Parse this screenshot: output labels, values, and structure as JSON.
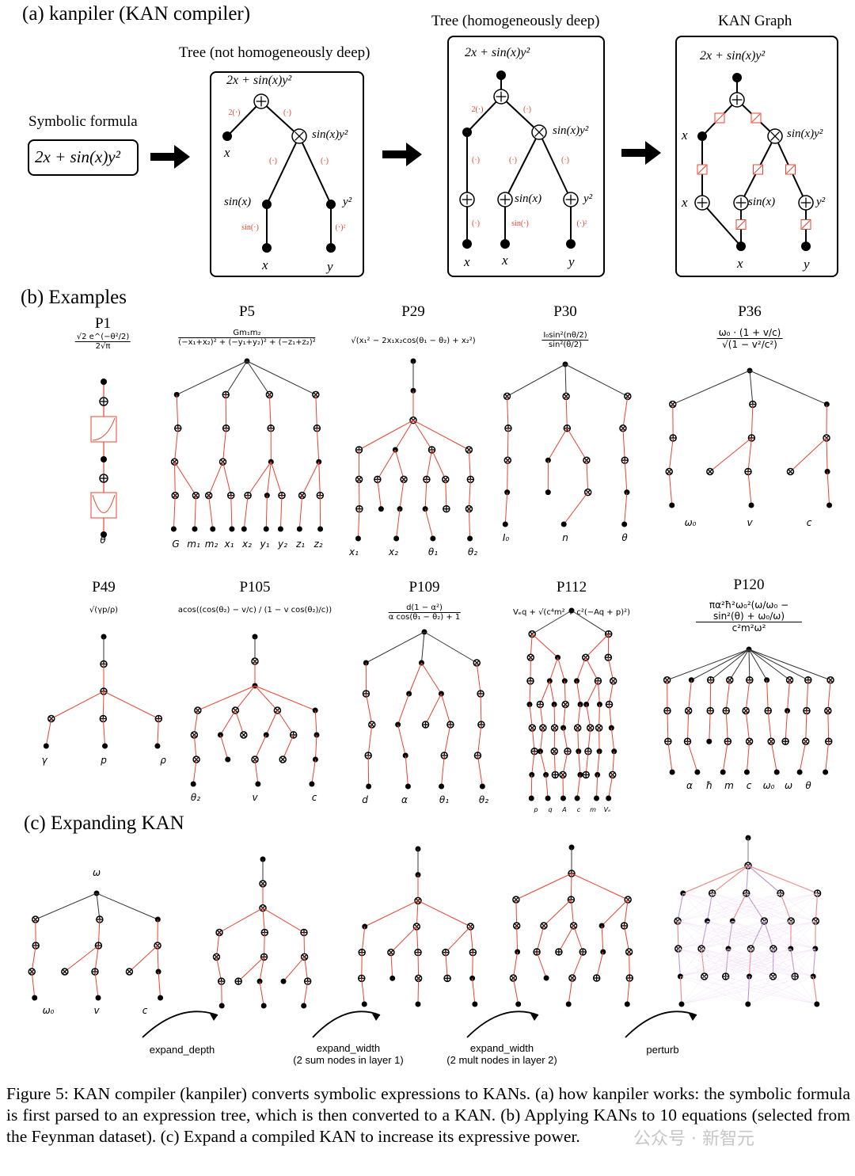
{
  "section_a": {
    "title": "(a) kanpiler (KAN compiler)",
    "symbolic_label": "Symbolic formula",
    "formula": "2x + sin(x)y²",
    "panels": [
      {
        "title": "Tree (not homogeneously deep)",
        "formula": "2x + sin(x)y²"
      },
      {
        "title": "Tree (homogeneously deep)",
        "formula": "2x + sin(x)y²"
      },
      {
        "title": "KAN Graph",
        "formula": "2x + sin(x)y²"
      }
    ],
    "node_labels": {
      "x": "x",
      "y": "y",
      "sinx": "sin(x)",
      "y2": "y²",
      "prod": "sin(x)y²"
    },
    "edge_labels": {
      "two": "2(·)",
      "id": "(·)",
      "sin": "sin(·)",
      "sq": "(·)²"
    }
  },
  "section_b": {
    "title": "(b) Examples",
    "examples": [
      {
        "name": "P1",
        "num": "√2 e^(−θ²/2)",
        "den": "2√π",
        "vars": [
          "θ"
        ]
      },
      {
        "name": "P5",
        "num": "Gm₁m₂",
        "den": "(−x₁+x₂)² + (−y₁+y₂)² + (−z₁+z₂)²",
        "vars": [
          "G",
          "m₁",
          "m₂",
          "x₁",
          "x₂",
          "y₁",
          "y₂",
          "z₁",
          "z₂"
        ]
      },
      {
        "name": "P29",
        "num": "√(x₁² − 2x₁x₂cos(θ₁ − θ₂) + x₂²)",
        "den": "",
        "vars": [
          "x₁",
          "x₂",
          "θ₁",
          "θ₂"
        ]
      },
      {
        "name": "P30",
        "num": "I₀sin²(nθ/2)",
        "den": "sin²(θ/2)",
        "vars": [
          "I₀",
          "n",
          "θ"
        ]
      },
      {
        "name": "P36",
        "num": "ω₀ · (1 + v/c)",
        "den": "√(1 − v²/c²)",
        "vars": [
          "ω₀",
          "v",
          "c"
        ]
      },
      {
        "name": "P49",
        "num": "√(γp/ρ)",
        "den": "",
        "vars": [
          "γ",
          "p",
          "ρ"
        ]
      },
      {
        "name": "P105",
        "num": "acos((cos(θ₂) − v/c) / (1 − v cos(θ₂)/c))",
        "den": "",
        "vars": [
          "θ₂",
          "v",
          "c"
        ]
      },
      {
        "name": "P109",
        "num": "d(1 − α²)",
        "den": "α cos(θ₁ − θ₂) + 1",
        "vars": [
          "d",
          "α",
          "θ₁",
          "θ₂"
        ]
      },
      {
        "name": "P112",
        "num": "Vₑq + √(c⁴m² + c²(−Aq + p)²)",
        "den": "",
        "vars": [
          "p",
          "q",
          "A",
          "c",
          "m",
          "Vₑ"
        ]
      },
      {
        "name": "P120",
        "num": "πα²ħ²ω₀²(ω/ω₀ − sin²(θ) + ω₀/ω)",
        "den": "c²m²ω²",
        "vars": [
          "α",
          "ħ",
          "m",
          "c",
          "ω₀",
          "ω",
          "θ"
        ]
      }
    ]
  },
  "section_c": {
    "title": "(c) Expanding KAN",
    "top_label": "ω",
    "vars": [
      "ω₀",
      "v",
      "c"
    ],
    "steps": [
      {
        "label": "expand_depth",
        "note": ""
      },
      {
        "label": "expand_width",
        "note": "(2 sum nodes in layer 1)"
      },
      {
        "label": "expand_width",
        "note": "(2 mult nodes in layer 2)"
      },
      {
        "label": "perturb",
        "note": ""
      }
    ]
  },
  "caption": "Figure 5: KAN compiler (kanpiler) converts symbolic expressions to KANs. (a) how kanpiler works: the symbolic formula is first parsed to an expression tree, which is then converted to a KAN. (b) Applying KANs to 10 equations (selected from the Feynman dataset). (c) Expand a compiled KAN to increase its expressive power.",
  "watermark": "公众号 · 新智元",
  "colors": {
    "edge_red": "#e8432f",
    "edge_purple": "#9b59b6",
    "node": "#000000"
  }
}
